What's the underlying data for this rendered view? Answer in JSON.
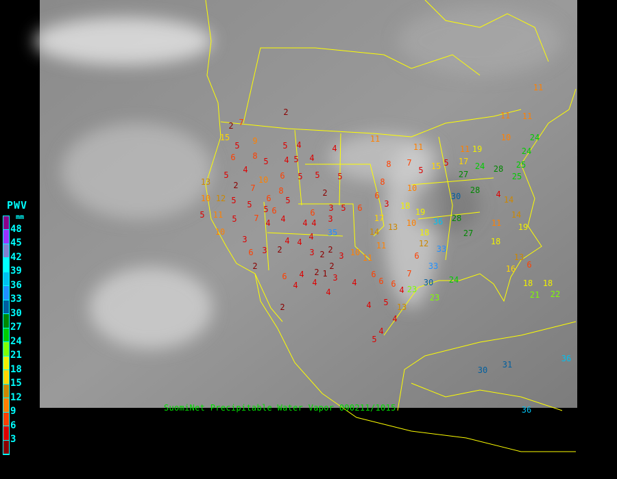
{
  "map": {
    "caption": "SuomiNet Precipitable Water Vapor 090211/1015",
    "boundary_color": "#ffff00",
    "background": "infrared satellite imagery (grayscale)"
  },
  "legend": {
    "title": "PWV",
    "unit": "mm",
    "ticks": [
      "48",
      "45",
      "42",
      "39",
      "36",
      "33",
      "30",
      "27",
      "24",
      "21",
      "18",
      "15",
      "12",
      "9",
      "6",
      "3"
    ],
    "colors": [
      "#8b008b",
      "#9933ff",
      "#8080d0",
      "#00ffff",
      "#00c0f0",
      "#2090ff",
      "#005f9f",
      "#008800",
      "#00cc00",
      "#80ff00",
      "#f0f000",
      "#ffd700",
      "#cc8800",
      "#ff8000",
      "#ff4000",
      "#dd0000",
      "#8b0000"
    ]
  },
  "stations": {
    "values": [
      2,
      2,
      7,
      15,
      5,
      9,
      5,
      4,
      4,
      11,
      6,
      8,
      4,
      5,
      4,
      5,
      4,
      5,
      10,
      6,
      5,
      5,
      5,
      8,
      7,
      8,
      5,
      10,
      15,
      13,
      2,
      7,
      6,
      8,
      10,
      12,
      5,
      5,
      5,
      5,
      2,
      3,
      5,
      6,
      6,
      3,
      18,
      11,
      5,
      5,
      7,
      6,
      4,
      6,
      3,
      4,
      4,
      35,
      4,
      10,
      3,
      6,
      3,
      2,
      4,
      4,
      2,
      4,
      3,
      2,
      2,
      3,
      2,
      10,
      11,
      1,
      3,
      4,
      4,
      6,
      2,
      4,
      4,
      4,
      6,
      6,
      6,
      7,
      4,
      5,
      4,
      2,
      4,
      5,
      13,
      4,
      6,
      12,
      14,
      11,
      13,
      10,
      18,
      19,
      17,
      36,
      33,
      33,
      30,
      23,
      23,
      24,
      28,
      27,
      30,
      27,
      28,
      24,
      28,
      4,
      14,
      14,
      19,
      18,
      11,
      13,
      16,
      6,
      18,
      18,
      21,
      22,
      11,
      11,
      17,
      19,
      5,
      10,
      24,
      24,
      25,
      25,
      11,
      11,
      11,
      31,
      30,
      36,
      36
    ]
  }
}
